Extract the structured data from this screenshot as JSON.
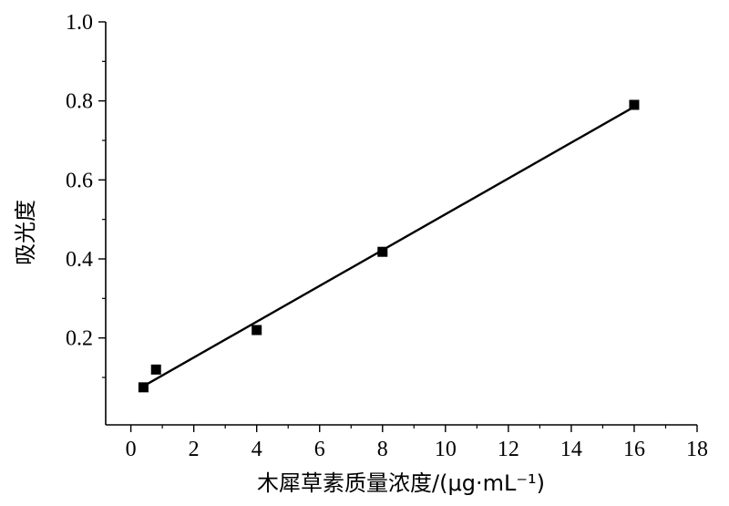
{
  "chart_data": {
    "type": "scatter",
    "title": "",
    "xlabel": "木犀草素质量浓度/(μg·mL⁻¹)",
    "ylabel": "吸光度",
    "xlim": [
      -0.8,
      18
    ],
    "ylim": [
      -0.02,
      1.0
    ],
    "xticks": [
      0,
      2,
      4,
      6,
      8,
      10,
      12,
      14,
      16,
      18
    ],
    "xtick_labels": [
      "0",
      "2",
      "4",
      "6",
      "8",
      "10",
      "12",
      "14",
      "16",
      "18"
    ],
    "yticks": [
      0.2,
      0.4,
      0.6,
      0.8,
      1.0
    ],
    "ytick_labels": [
      "0.2",
      "0.4",
      "0.6",
      "0.8",
      "1.0"
    ],
    "grid": false,
    "series": [
      {
        "marker": "square",
        "color": "#000000",
        "points": [
          {
            "x": 0.4,
            "y": 0.075
          },
          {
            "x": 0.8,
            "y": 0.12
          },
          {
            "x": 4,
            "y": 0.22
          },
          {
            "x": 8,
            "y": 0.418
          },
          {
            "x": 16,
            "y": 0.79
          }
        ]
      }
    ],
    "fit_line": {
      "x": [
        0.4,
        16
      ],
      "y": [
        0.078,
        0.785
      ],
      "color": "#000000"
    }
  }
}
